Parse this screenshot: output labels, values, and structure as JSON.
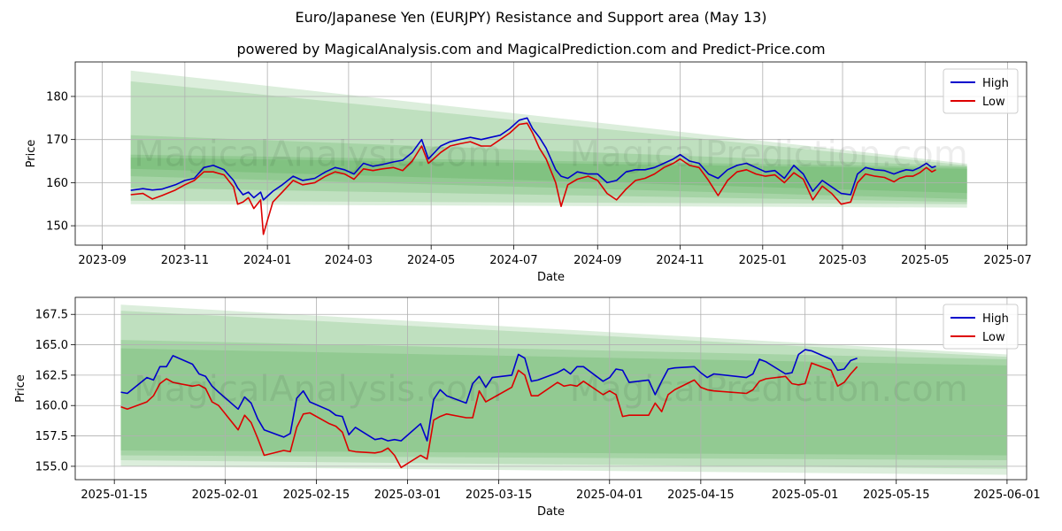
{
  "figure": {
    "title": "Euro/Japanese Yen (EURJPY) Resistance and Support area (May 13)",
    "subtitle": "powered by MagicalAnalysis.com and MagicalPrediction.com and Predict-Price.com",
    "watermark": "MagicalAnalysis.com      MagicalPrediction.com",
    "colors": {
      "high": "#0000cc",
      "low": "#dd0000",
      "band": "#2e9b2e",
      "grid": "#b0b0b0"
    }
  },
  "chart_data": [
    {
      "type": "line",
      "xlabel": "Date",
      "ylabel": "Price",
      "x_ticks": [
        "2023-09",
        "2023-11",
        "2024-01",
        "2024-03",
        "2024-05",
        "2024-07",
        "2024-09",
        "2024-11",
        "2025-01",
        "2025-03",
        "2025-05",
        "2025-07"
      ],
      "y_ticks": [
        150,
        160,
        170,
        180
      ],
      "xlim": [
        "2023-08-12",
        "2025-07-15"
      ],
      "ylim": [
        145.5,
        188
      ],
      "grid": true,
      "legend": "top-right",
      "bands": [
        {
          "x": [
            "2023-09-22",
            "2025-06-01"
          ],
          "upper": [
            186,
            164.4
          ],
          "lower": [
            155,
            154.2
          ]
        },
        {
          "x": [
            "2023-09-22",
            "2025-06-01"
          ],
          "upper": [
            183.5,
            164.0
          ],
          "lower": [
            155.8,
            155.0
          ]
        },
        {
          "x": [
            "2023-09-22",
            "2025-06-01"
          ],
          "upper": [
            171,
            163.8
          ],
          "lower": [
            158.8,
            155.5
          ]
        },
        {
          "x": [
            "2023-09-22",
            "2025-06-01"
          ],
          "upper": [
            166.5,
            163.6
          ],
          "lower": [
            161.5,
            156.2
          ]
        },
        {
          "x": [
            "2023-09-22",
            "2025-06-01"
          ],
          "upper": [
            165.8,
            163.2
          ],
          "lower": [
            163.2,
            157.6
          ]
        }
      ],
      "series": [
        {
          "name": "High",
          "x": [
            "2023-09-22",
            "2023-10-01",
            "2023-10-08",
            "2023-10-15",
            "2023-10-25",
            "2023-11-01",
            "2023-11-08",
            "2023-11-15",
            "2023-11-22",
            "2023-11-30",
            "2023-12-07",
            "2023-12-10",
            "2023-12-14",
            "2023-12-18",
            "2023-12-22",
            "2023-12-27",
            "2023-12-29",
            "2024-01-05",
            "2024-01-12",
            "2024-01-20",
            "2024-01-27",
            "2024-02-05",
            "2024-02-13",
            "2024-02-20",
            "2024-02-27",
            "2024-03-05",
            "2024-03-12",
            "2024-03-19",
            "2024-03-26",
            "2024-04-03",
            "2024-04-10",
            "2024-04-17",
            "2024-04-24",
            "2024-04-29",
            "2024-05-02",
            "2024-05-08",
            "2024-05-15",
            "2024-05-22",
            "2024-05-30",
            "2024-06-07",
            "2024-06-14",
            "2024-06-21",
            "2024-06-28",
            "2024-07-05",
            "2024-07-11",
            "2024-07-15",
            "2024-07-20",
            "2024-07-25",
            "2024-08-01",
            "2024-08-05",
            "2024-08-10",
            "2024-08-17",
            "2024-08-25",
            "2024-09-01",
            "2024-09-08",
            "2024-09-15",
            "2024-09-22",
            "2024-09-29",
            "2024-10-06",
            "2024-10-13",
            "2024-10-20",
            "2024-10-27",
            "2024-11-01",
            "2024-11-08",
            "2024-11-15",
            "2024-11-22",
            "2024-11-29",
            "2024-12-06",
            "2024-12-13",
            "2024-12-20",
            "2024-12-27",
            "2025-01-03",
            "2025-01-10",
            "2025-01-17",
            "2025-01-24",
            "2025-01-31",
            "2025-02-07",
            "2025-02-14",
            "2025-02-21",
            "2025-02-28",
            "2025-03-07",
            "2025-03-12",
            "2025-03-18",
            "2025-03-25",
            "2025-04-01",
            "2025-04-08",
            "2025-04-12",
            "2025-04-17",
            "2025-04-22",
            "2025-04-27",
            "2025-05-02",
            "2025-05-06",
            "2025-05-09"
          ],
          "values": [
            158.2,
            158.6,
            158.3,
            158.5,
            159.5,
            160.5,
            161.0,
            163.5,
            164.0,
            163.0,
            160.5,
            158.8,
            157.2,
            157.8,
            156.5,
            157.8,
            156.0,
            158.0,
            159.5,
            161.5,
            160.5,
            161.0,
            162.5,
            163.5,
            163.0,
            162.0,
            164.5,
            163.8,
            164.2,
            164.8,
            165.2,
            167.0,
            170.0,
            165.5,
            166.5,
            168.5,
            169.5,
            170.0,
            170.5,
            170.0,
            170.5,
            171.0,
            172.5,
            174.5,
            175.0,
            172.5,
            170.5,
            168.0,
            163.0,
            161.5,
            161.0,
            162.5,
            162.0,
            162.0,
            160.0,
            160.5,
            162.5,
            163.0,
            163.0,
            163.5,
            164.5,
            165.5,
            166.5,
            165.0,
            164.5,
            162.0,
            161.0,
            163.0,
            164.0,
            164.5,
            163.5,
            162.5,
            162.8,
            161.0,
            164.0,
            162.0,
            158.0,
            160.5,
            159.0,
            157.5,
            157.2,
            162.0,
            163.5,
            163.0,
            162.8,
            162.0,
            162.5,
            163.0,
            162.8,
            163.5,
            164.5,
            163.5,
            163.8
          ]
        },
        {
          "name": "Low",
          "x": [
            "2023-09-22",
            "2023-10-01",
            "2023-10-08",
            "2023-10-15",
            "2023-10-25",
            "2023-11-01",
            "2023-11-08",
            "2023-11-15",
            "2023-11-22",
            "2023-11-30",
            "2023-12-07",
            "2023-12-10",
            "2023-12-14",
            "2023-12-18",
            "2023-12-22",
            "2023-12-27",
            "2023-12-29",
            "2024-01-05",
            "2024-01-12",
            "2024-01-20",
            "2024-01-27",
            "2024-02-05",
            "2024-02-13",
            "2024-02-20",
            "2024-02-27",
            "2024-03-05",
            "2024-03-12",
            "2024-03-19",
            "2024-03-26",
            "2024-04-03",
            "2024-04-10",
            "2024-04-17",
            "2024-04-24",
            "2024-04-29",
            "2024-05-02",
            "2024-05-08",
            "2024-05-15",
            "2024-05-22",
            "2024-05-30",
            "2024-06-07",
            "2024-06-14",
            "2024-06-21",
            "2024-06-28",
            "2024-07-05",
            "2024-07-11",
            "2024-07-15",
            "2024-07-20",
            "2024-07-25",
            "2024-08-01",
            "2024-08-05",
            "2024-08-10",
            "2024-08-17",
            "2024-08-25",
            "2024-09-01",
            "2024-09-08",
            "2024-09-15",
            "2024-09-22",
            "2024-09-29",
            "2024-10-06",
            "2024-10-13",
            "2024-10-20",
            "2024-10-27",
            "2024-11-01",
            "2024-11-08",
            "2024-11-15",
            "2024-11-22",
            "2024-11-29",
            "2024-12-06",
            "2024-12-13",
            "2024-12-20",
            "2024-12-27",
            "2025-01-03",
            "2025-01-10",
            "2025-01-17",
            "2025-01-24",
            "2025-01-31",
            "2025-02-07",
            "2025-02-14",
            "2025-02-21",
            "2025-02-28",
            "2025-03-07",
            "2025-03-12",
            "2025-03-18",
            "2025-03-25",
            "2025-04-01",
            "2025-04-08",
            "2025-04-12",
            "2025-04-17",
            "2025-04-22",
            "2025-04-27",
            "2025-05-02",
            "2025-05-06",
            "2025-05-09"
          ],
          "values": [
            157.2,
            157.5,
            156.2,
            157.0,
            158.3,
            159.5,
            160.5,
            162.5,
            162.5,
            161.8,
            159.0,
            155.0,
            155.5,
            156.5,
            154.0,
            156.0,
            148.0,
            155.5,
            157.8,
            160.5,
            159.5,
            160.0,
            161.5,
            162.5,
            162.0,
            160.8,
            163.2,
            162.8,
            163.2,
            163.5,
            162.8,
            165.0,
            168.5,
            164.5,
            165.3,
            167.0,
            168.5,
            169.0,
            169.5,
            168.5,
            168.5,
            170.0,
            171.5,
            173.5,
            173.8,
            171.5,
            168.0,
            165.5,
            160.0,
            154.5,
            159.5,
            160.8,
            161.5,
            160.5,
            157.5,
            156.0,
            158.5,
            160.5,
            161.0,
            162.0,
            163.5,
            164.5,
            165.5,
            164.0,
            163.5,
            160.5,
            157.0,
            160.5,
            162.5,
            163.0,
            162.0,
            161.5,
            161.8,
            160.0,
            162.3,
            160.8,
            156.0,
            159.2,
            157.5,
            155.0,
            155.5,
            160.0,
            162.0,
            161.5,
            161.2,
            160.2,
            161.0,
            161.5,
            161.5,
            162.3,
            163.5,
            162.5,
            163.0
          ]
        }
      ]
    },
    {
      "type": "line",
      "xlabel": "Date",
      "ylabel": "Price",
      "x_ticks": [
        "2025-01-15",
        "2025-02-01",
        "2025-02-15",
        "2025-03-01",
        "2025-03-15",
        "2025-04-01",
        "2025-04-15",
        "2025-05-01",
        "2025-05-15",
        "2025-06-01"
      ],
      "y_ticks": [
        "155.0",
        "157.5",
        "160.0",
        "162.5",
        "165.0",
        "167.5"
      ],
      "xlim": [
        "2025-01-09",
        "2025-06-04"
      ],
      "ylim": [
        153.9,
        168.9
      ],
      "grid": true,
      "legend": "top-right",
      "bands": [
        {
          "x": [
            "2025-01-16",
            "2025-06-01"
          ],
          "upper": [
            168.3,
            164.2
          ],
          "lower": [
            155.0,
            154.3
          ]
        },
        {
          "x": [
            "2025-01-16",
            "2025-06-01"
          ],
          "upper": [
            167.8,
            164.0
          ],
          "lower": [
            155.5,
            154.8
          ]
        },
        {
          "x": [
            "2025-01-16",
            "2025-06-01"
          ],
          "upper": [
            165.4,
            163.8
          ],
          "lower": [
            155.9,
            155.5
          ]
        },
        {
          "x": [
            "2025-01-16",
            "2025-06-01"
          ],
          "upper": [
            164.7,
            163.3
          ],
          "lower": [
            156.3,
            155.9
          ]
        }
      ],
      "series": [
        {
          "name": "High",
          "x": [
            "2025-01-16",
            "2025-01-17",
            "2025-01-20",
            "2025-01-21",
            "2025-01-22",
            "2025-01-23",
            "2025-01-24",
            "2025-01-27",
            "2025-01-28",
            "2025-01-29",
            "2025-01-30",
            "2025-01-31",
            "2025-02-03",
            "2025-02-04",
            "2025-02-05",
            "2025-02-06",
            "2025-02-07",
            "2025-02-10",
            "2025-02-11",
            "2025-02-12",
            "2025-02-13",
            "2025-02-14",
            "2025-02-17",
            "2025-02-18",
            "2025-02-19",
            "2025-02-20",
            "2025-02-21",
            "2025-02-24",
            "2025-02-25",
            "2025-02-26",
            "2025-02-27",
            "2025-02-28",
            "2025-03-03",
            "2025-03-04",
            "2025-03-05",
            "2025-03-06",
            "2025-03-07",
            "2025-03-10",
            "2025-03-11",
            "2025-03-12",
            "2025-03-13",
            "2025-03-14",
            "2025-03-17",
            "2025-03-18",
            "2025-03-19",
            "2025-03-20",
            "2025-03-21",
            "2025-03-24",
            "2025-03-25",
            "2025-03-26",
            "2025-03-27",
            "2025-03-28",
            "2025-03-31",
            "2025-04-01",
            "2025-04-02",
            "2025-04-03",
            "2025-04-04",
            "2025-04-07",
            "2025-04-08",
            "2025-04-09",
            "2025-04-10",
            "2025-04-11",
            "2025-04-14",
            "2025-04-15",
            "2025-04-16",
            "2025-04-17",
            "2025-04-22",
            "2025-04-23",
            "2025-04-24",
            "2025-04-25",
            "2025-04-28",
            "2025-04-29",
            "2025-04-30",
            "2025-05-01",
            "2025-05-02",
            "2025-05-05",
            "2025-05-06",
            "2025-05-07",
            "2025-05-08",
            "2025-05-09"
          ],
          "values": [
            161.1,
            161.0,
            162.3,
            162.1,
            163.2,
            163.2,
            164.1,
            163.4,
            162.6,
            162.4,
            161.6,
            161.1,
            159.7,
            160.7,
            160.2,
            158.9,
            158.0,
            157.4,
            157.7,
            160.6,
            161.2,
            160.3,
            159.6,
            159.2,
            159.1,
            157.6,
            158.2,
            157.2,
            157.3,
            157.1,
            157.2,
            157.1,
            158.5,
            157.1,
            160.5,
            161.3,
            160.8,
            160.2,
            161.8,
            162.4,
            161.5,
            162.3,
            162.5,
            164.2,
            163.9,
            162.0,
            162.1,
            162.7,
            163.0,
            162.6,
            163.2,
            163.2,
            162.0,
            162.3,
            163.0,
            162.9,
            161.9,
            162.1,
            160.9,
            162.0,
            163.0,
            163.1,
            163.2,
            162.7,
            162.3,
            162.6,
            162.3,
            162.6,
            163.8,
            163.6,
            162.6,
            162.7,
            164.2,
            164.6,
            164.5,
            163.8,
            162.9,
            163.0,
            163.7,
            163.9
          ]
        },
        {
          "name": "Low",
          "x": [
            "2025-01-16",
            "2025-01-17",
            "2025-01-20",
            "2025-01-21",
            "2025-01-22",
            "2025-01-23",
            "2025-01-24",
            "2025-01-27",
            "2025-01-28",
            "2025-01-29",
            "2025-01-30",
            "2025-01-31",
            "2025-02-03",
            "2025-02-04",
            "2025-02-05",
            "2025-02-06",
            "2025-02-07",
            "2025-02-10",
            "2025-02-11",
            "2025-02-12",
            "2025-02-13",
            "2025-02-14",
            "2025-02-17",
            "2025-02-18",
            "2025-02-19",
            "2025-02-20",
            "2025-02-21",
            "2025-02-24",
            "2025-02-25",
            "2025-02-26",
            "2025-02-27",
            "2025-02-28",
            "2025-03-03",
            "2025-03-04",
            "2025-03-05",
            "2025-03-06",
            "2025-03-07",
            "2025-03-10",
            "2025-03-11",
            "2025-03-12",
            "2025-03-13",
            "2025-03-14",
            "2025-03-17",
            "2025-03-18",
            "2025-03-19",
            "2025-03-20",
            "2025-03-21",
            "2025-03-24",
            "2025-03-25",
            "2025-03-26",
            "2025-03-27",
            "2025-03-28",
            "2025-03-31",
            "2025-04-01",
            "2025-04-02",
            "2025-04-03",
            "2025-04-04",
            "2025-04-07",
            "2025-04-08",
            "2025-04-09",
            "2025-04-10",
            "2025-04-11",
            "2025-04-14",
            "2025-04-15",
            "2025-04-16",
            "2025-04-17",
            "2025-04-22",
            "2025-04-23",
            "2025-04-24",
            "2025-04-25",
            "2025-04-28",
            "2025-04-29",
            "2025-04-30",
            "2025-05-01",
            "2025-05-02",
            "2025-05-05",
            "2025-05-06",
            "2025-05-07",
            "2025-05-08",
            "2025-05-09"
          ],
          "values": [
            159.9,
            159.7,
            160.3,
            160.8,
            161.8,
            162.2,
            161.9,
            161.6,
            161.7,
            161.4,
            160.3,
            160.0,
            158.0,
            159.2,
            158.6,
            157.3,
            155.9,
            156.3,
            156.2,
            158.2,
            159.3,
            159.4,
            158.5,
            158.3,
            157.8,
            156.3,
            156.2,
            156.1,
            156.2,
            156.5,
            155.9,
            154.9,
            155.9,
            155.6,
            158.8,
            159.1,
            159.3,
            159.0,
            159.0,
            161.2,
            160.3,
            160.6,
            161.5,
            162.9,
            162.5,
            160.8,
            160.8,
            161.9,
            161.6,
            161.7,
            161.6,
            162.0,
            160.9,
            161.2,
            160.9,
            159.1,
            159.2,
            159.2,
            160.2,
            159.5,
            160.9,
            161.3,
            162.1,
            161.5,
            161.3,
            161.2,
            161.0,
            161.3,
            162.0,
            162.2,
            162.4,
            161.8,
            161.7,
            161.8,
            163.5,
            162.9,
            161.6,
            161.9,
            162.6,
            163.2
          ]
        }
      ]
    }
  ]
}
